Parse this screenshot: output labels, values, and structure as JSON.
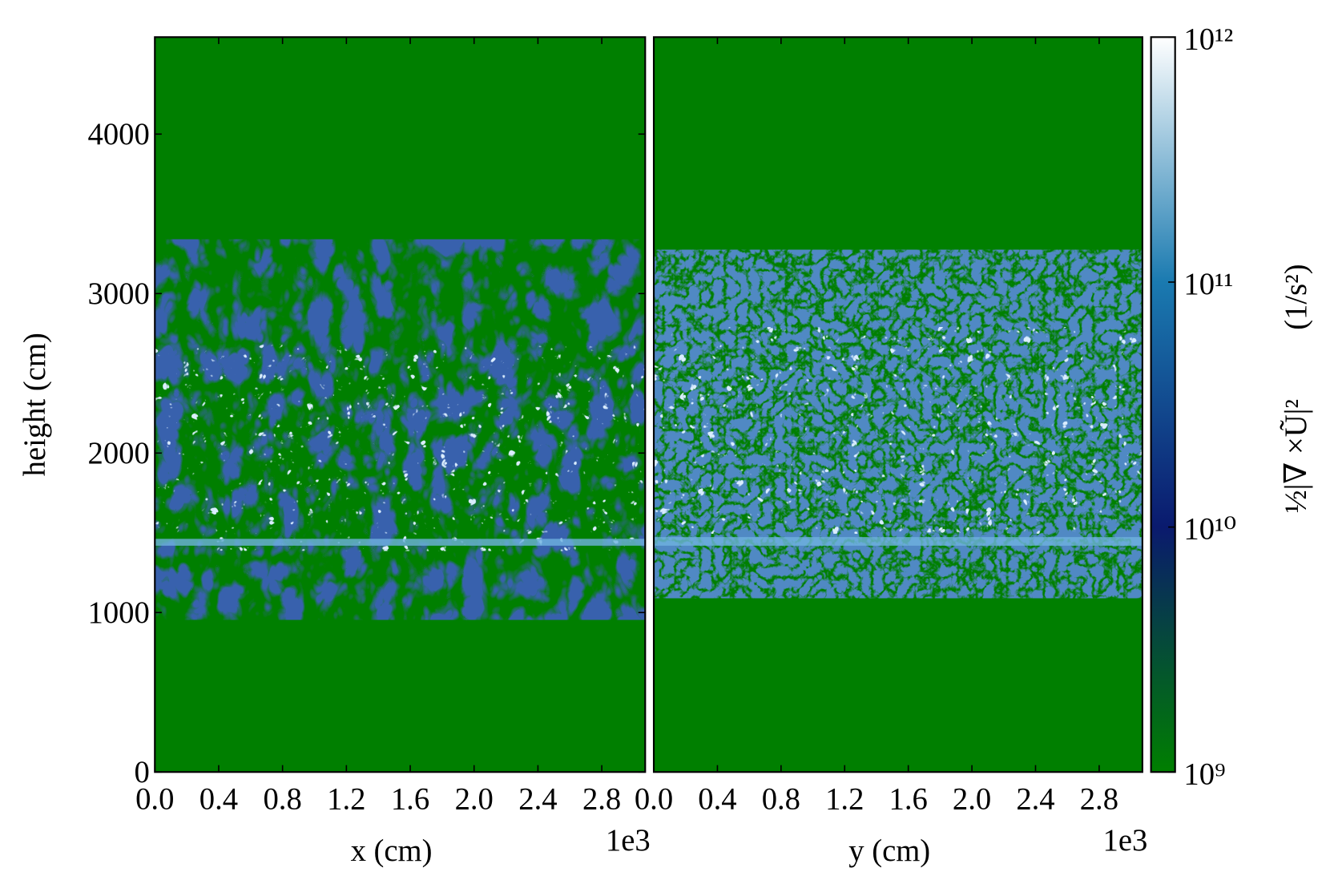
{
  "chart_data": [
    {
      "type": "heatmap",
      "xlabel": "x   (cm)",
      "ylabel": "height (cm)",
      "offset_text": "1e3",
      "xlim": [
        0,
        3072
      ],
      "xticks": [
        {
          "value": 0,
          "label": "0.0"
        },
        {
          "value": 400,
          "label": "0.4"
        },
        {
          "value": 800,
          "label": "0.8"
        },
        {
          "value": 1200,
          "label": "1.2"
        },
        {
          "value": 1600,
          "label": "1.6"
        },
        {
          "value": 2000,
          "label": "2.0"
        },
        {
          "value": 2400,
          "label": "2.4"
        },
        {
          "value": 2800,
          "label": "2.8"
        }
      ],
      "ylim": [
        0,
        4608
      ],
      "yticks": [
        0,
        1000,
        2000,
        3000,
        4000
      ]
    },
    {
      "type": "heatmap",
      "xlabel": "y   (cm)",
      "offset_text": "1e3",
      "xlim": [
        0,
        3072
      ],
      "xticks": [
        {
          "value": 0,
          "label": "0.0"
        },
        {
          "value": 400,
          "label": "0.4"
        },
        {
          "value": 800,
          "label": "0.8"
        },
        {
          "value": 1200,
          "label": "1.2"
        },
        {
          "value": 1600,
          "label": "1.6"
        },
        {
          "value": 2000,
          "label": "2.0"
        },
        {
          "value": 2400,
          "label": "2.4"
        },
        {
          "value": 2800,
          "label": "2.8"
        }
      ],
      "ylim": [
        0,
        4608
      ]
    },
    {
      "type": "colorbar",
      "log_scale": true,
      "label": "½|∇ ×Ũ|²",
      "units": "(1/s²)",
      "zlim": [
        1000000000,
        1000000000000
      ],
      "zticks": [
        {
          "value": 1000000000,
          "label": "10⁹"
        },
        {
          "value": 10000000000,
          "label": "10¹⁰"
        },
        {
          "value": 100000000000,
          "label": "10¹¹"
        },
        {
          "value": 1000000000000,
          "label": "10¹²"
        }
      ],
      "colors": [
        "#007f00",
        "#0a1a6e",
        "#1a7ab0",
        "#ffffff"
      ]
    }
  ]
}
